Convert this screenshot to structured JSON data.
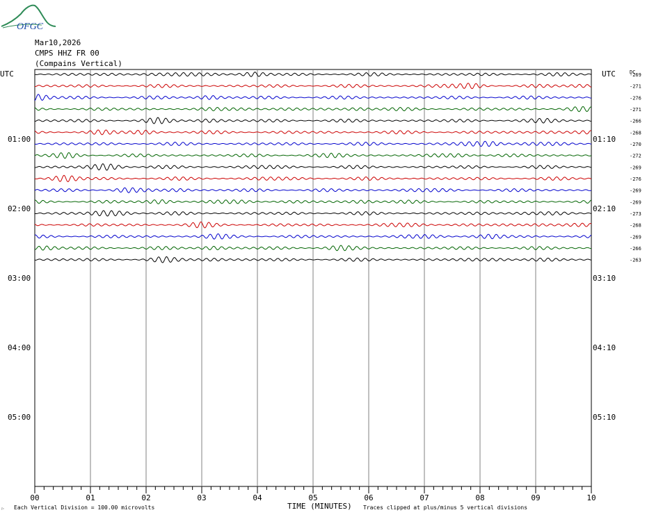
{
  "logo": {
    "text": "OFGC",
    "colors": {
      "hill": "#2e8b57",
      "text": "#1f4fa8"
    }
  },
  "header": {
    "date": "Mar10,2026",
    "station": "CMPS HHZ FR 00",
    "location": "(Compains Vertical)"
  },
  "chart_data": {
    "type": "line",
    "title": "",
    "xlabel": "TIME (MINUTES)",
    "x_ticks": [
      "00",
      "01",
      "02",
      "03",
      "04",
      "05",
      "06",
      "07",
      "08",
      "09",
      "10"
    ],
    "xlim": [
      0,
      10
    ],
    "left_axis_title": "UTC",
    "right_axis_title": "UTC",
    "dc_header": "DC",
    "left_time_labels": [
      "01:00",
      "02:00",
      "03:00",
      "04:00",
      "05:00"
    ],
    "right_time_labels": [
      "01:10",
      "02:10",
      "03:10",
      "04:10",
      "05:10"
    ],
    "rows_total": 36,
    "trace_colors": [
      "#000000",
      "#cc0000",
      "#0000cc",
      "#006400"
    ],
    "traces": [
      {
        "dc": "-269"
      },
      {
        "dc": "-271"
      },
      {
        "dc": "-276"
      },
      {
        "dc": "-271"
      },
      {
        "dc": "-266"
      },
      {
        "dc": "-268"
      },
      {
        "dc": "-270"
      },
      {
        "dc": "-272"
      },
      {
        "dc": "-269"
      },
      {
        "dc": "-276"
      },
      {
        "dc": "-269"
      },
      {
        "dc": "-269"
      },
      {
        "dc": "-273"
      },
      {
        "dc": "-268"
      },
      {
        "dc": "-269"
      },
      {
        "dc": "-266"
      },
      {
        "dc": "-263"
      }
    ],
    "footer": {
      "scale_note": "Each Vertical Division =  100.00 microvolts",
      "clip_note": "Traces clipped at plus/minus 5 vertical divisions"
    }
  }
}
